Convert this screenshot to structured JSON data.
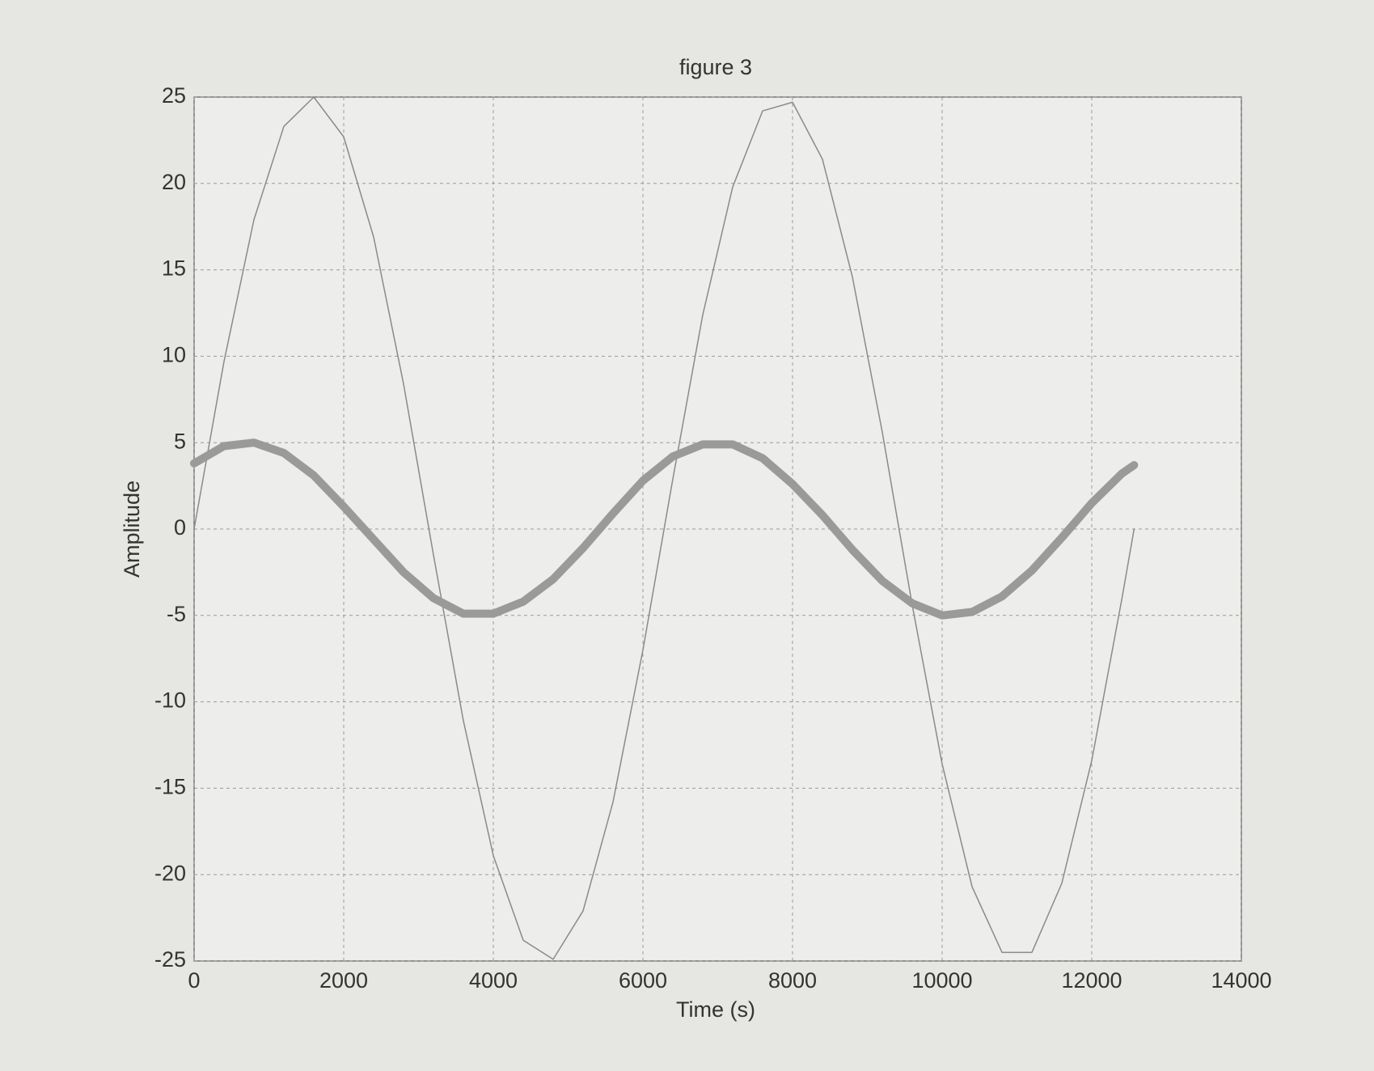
{
  "chart_data": {
    "type": "line",
    "title": "figure 3",
    "xlabel": "Time (s)",
    "ylabel": "Amplitude",
    "x": [
      0,
      400,
      800,
      1200,
      1600,
      2000,
      2400,
      2800,
      3200,
      3600,
      4000,
      4400,
      4800,
      5200,
      5600,
      6000,
      6400,
      6800,
      7200,
      7600,
      8000,
      8400,
      8800,
      9200,
      9600,
      10000,
      10400,
      10800,
      11200,
      11600,
      12000,
      12400,
      12566
    ],
    "series": [
      {
        "color": "#8a8a8a",
        "width": 1.5,
        "values": [
          0,
          9.7,
          17.9,
          23.3,
          25.0,
          22.7,
          16.9,
          8.4,
          -1.5,
          -11.1,
          -18.9,
          -23.8,
          -24.9,
          -22.1,
          -15.8,
          -7.0,
          2.9,
          12.4,
          19.8,
          24.2,
          24.7,
          21.4,
          14.6,
          5.6,
          -4.4,
          -13.6,
          -20.7,
          -24.5,
          -24.5,
          -20.5,
          -13.4,
          -4.1,
          0
        ]
      },
      {
        "color": "#9a9a9a",
        "width": 10,
        "values": [
          3.8,
          4.8,
          5.0,
          4.4,
          3.1,
          1.3,
          -0.6,
          -2.5,
          -4.0,
          -4.9,
          -4.9,
          -4.2,
          -2.9,
          -1.1,
          0.9,
          2.8,
          4.2,
          4.9,
          4.9,
          4.1,
          2.6,
          0.8,
          -1.2,
          -3.0,
          -4.3,
          -5.0,
          -4.8,
          -3.9,
          -2.4,
          -0.5,
          1.5,
          3.2,
          3.7
        ]
      }
    ],
    "xlim": [
      0,
      14000
    ],
    "xticks": [
      0,
      2000,
      4000,
      6000,
      8000,
      10000,
      12000,
      14000
    ],
    "ylim": [
      -25,
      25
    ],
    "yticks": [
      -25,
      -20,
      -15,
      -10,
      -5,
      0,
      5,
      10,
      15,
      20,
      25
    ],
    "grid": true
  }
}
